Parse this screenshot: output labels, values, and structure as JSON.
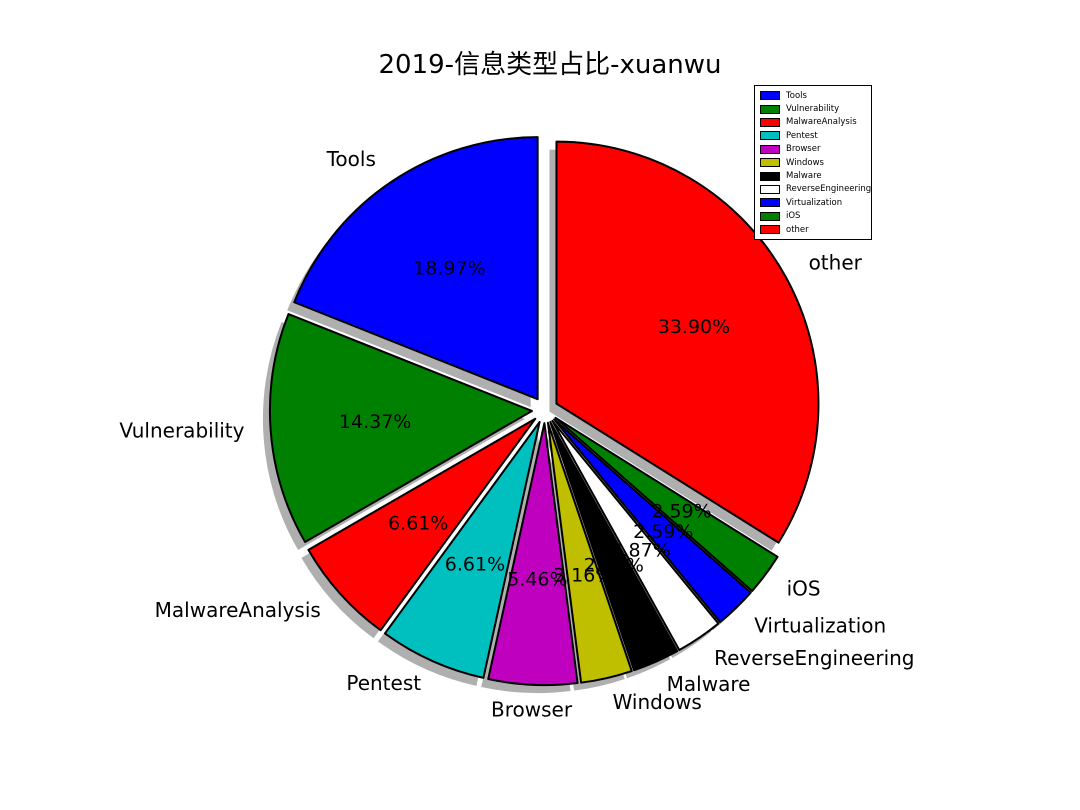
{
  "chart_data": {
    "type": "pie",
    "title": "2019-信息类型占比-xuanwu",
    "slices": [
      {
        "label": "Tools",
        "value": 18.97,
        "pct_text": "18.97%",
        "color": "#0000ff"
      },
      {
        "label": "Vulnerability",
        "value": 14.37,
        "pct_text": "14.37%",
        "color": "#008000"
      },
      {
        "label": "MalwareAnalysis",
        "value": 6.61,
        "pct_text": "6.61%",
        "color": "#ff0000"
      },
      {
        "label": "Pentest",
        "value": 6.61,
        "pct_text": "6.61%",
        "color": "#00bfbf"
      },
      {
        "label": "Browser",
        "value": 5.46,
        "pct_text": "5.46%",
        "color": "#bf00bf"
      },
      {
        "label": "Windows",
        "value": 3.16,
        "pct_text": "3.16%",
        "color": "#bfbf00"
      },
      {
        "label": "Malware",
        "value": 2.87,
        "pct_text": "2.87%",
        "color": "#000000"
      },
      {
        "label": "ReverseEngineering",
        "value": 2.87,
        "pct_text": "2.87%",
        "color": "#ffffff"
      },
      {
        "label": "Virtualization",
        "value": 2.59,
        "pct_text": "2.59%",
        "color": "#0000ff"
      },
      {
        "label": "iOS",
        "value": 2.59,
        "pct_text": "2.59%",
        "color": "#008000"
      },
      {
        "label": "other",
        "value": 33.9,
        "pct_text": "33.90%",
        "color": "#ff0000"
      }
    ],
    "legend_position": "top-right",
    "exploded": true,
    "shadow": true
  }
}
